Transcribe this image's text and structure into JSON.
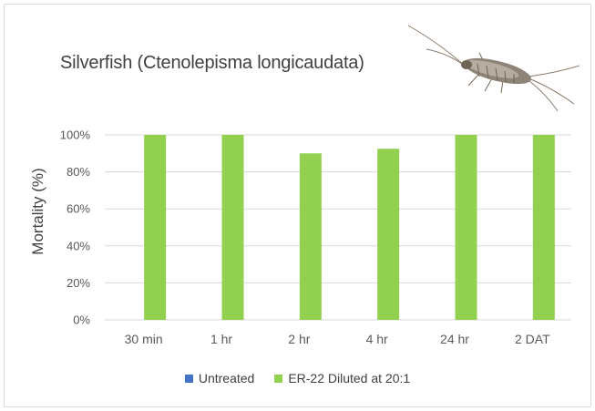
{
  "colors": {
    "untreated": "#4472c4",
    "treated": "#92d050",
    "grid": "#d9d9d9",
    "text": "#595959"
  },
  "image": {
    "icon": "silverfish-insect-photo"
  },
  "chart_data": {
    "type": "bar",
    "title": "Silverfish (Ctenolepisma longicaudata)",
    "ylabel": "Mortality (%)",
    "xlabel": "",
    "categories": [
      "30 min",
      "1 hr",
      "2 hr",
      "4 hr",
      "24 hr",
      "2 DAT"
    ],
    "ylim": [
      0,
      100
    ],
    "yticks": [
      0,
      20,
      40,
      60,
      80,
      100
    ],
    "ytick_labels": [
      "0%",
      "20%",
      "40%",
      "60%",
      "80%",
      "100%"
    ],
    "grid": true,
    "legend_position": "bottom",
    "series": [
      {
        "name": "Untreated",
        "values": [
          0,
          0,
          0,
          0,
          0,
          0
        ]
      },
      {
        "name": "ER-22 Diluted at 20:1",
        "values": [
          100,
          100,
          90,
          92.5,
          100,
          100
        ]
      }
    ]
  }
}
